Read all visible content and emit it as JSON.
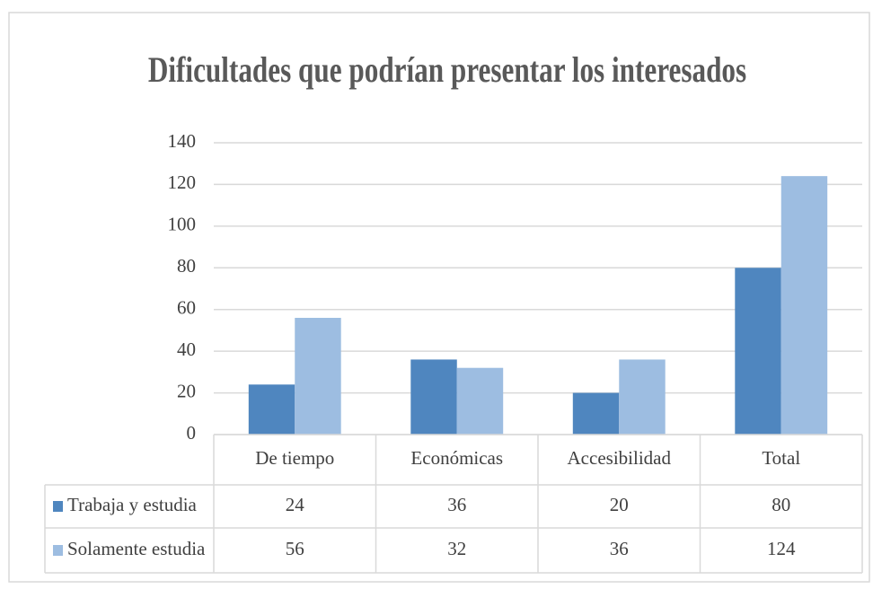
{
  "chart_data": {
    "type": "bar",
    "title": "Dificultades que podrían presentar los interesados",
    "categories": [
      "De tiempo",
      "Económicas",
      "Accesibilidad",
      "Total"
    ],
    "series": [
      {
        "name": "Trabaja y estudia",
        "color": "#4f86bf",
        "values": [
          24,
          36,
          20,
          80
        ]
      },
      {
        "name": "Solamente estudia",
        "color": "#9dbde1",
        "values": [
          56,
          32,
          36,
          124
        ]
      }
    ],
    "ylim": [
      0,
      140
    ],
    "yticks": [
      0,
      20,
      40,
      60,
      80,
      100,
      120,
      140
    ],
    "grid": true,
    "data_table": true
  }
}
